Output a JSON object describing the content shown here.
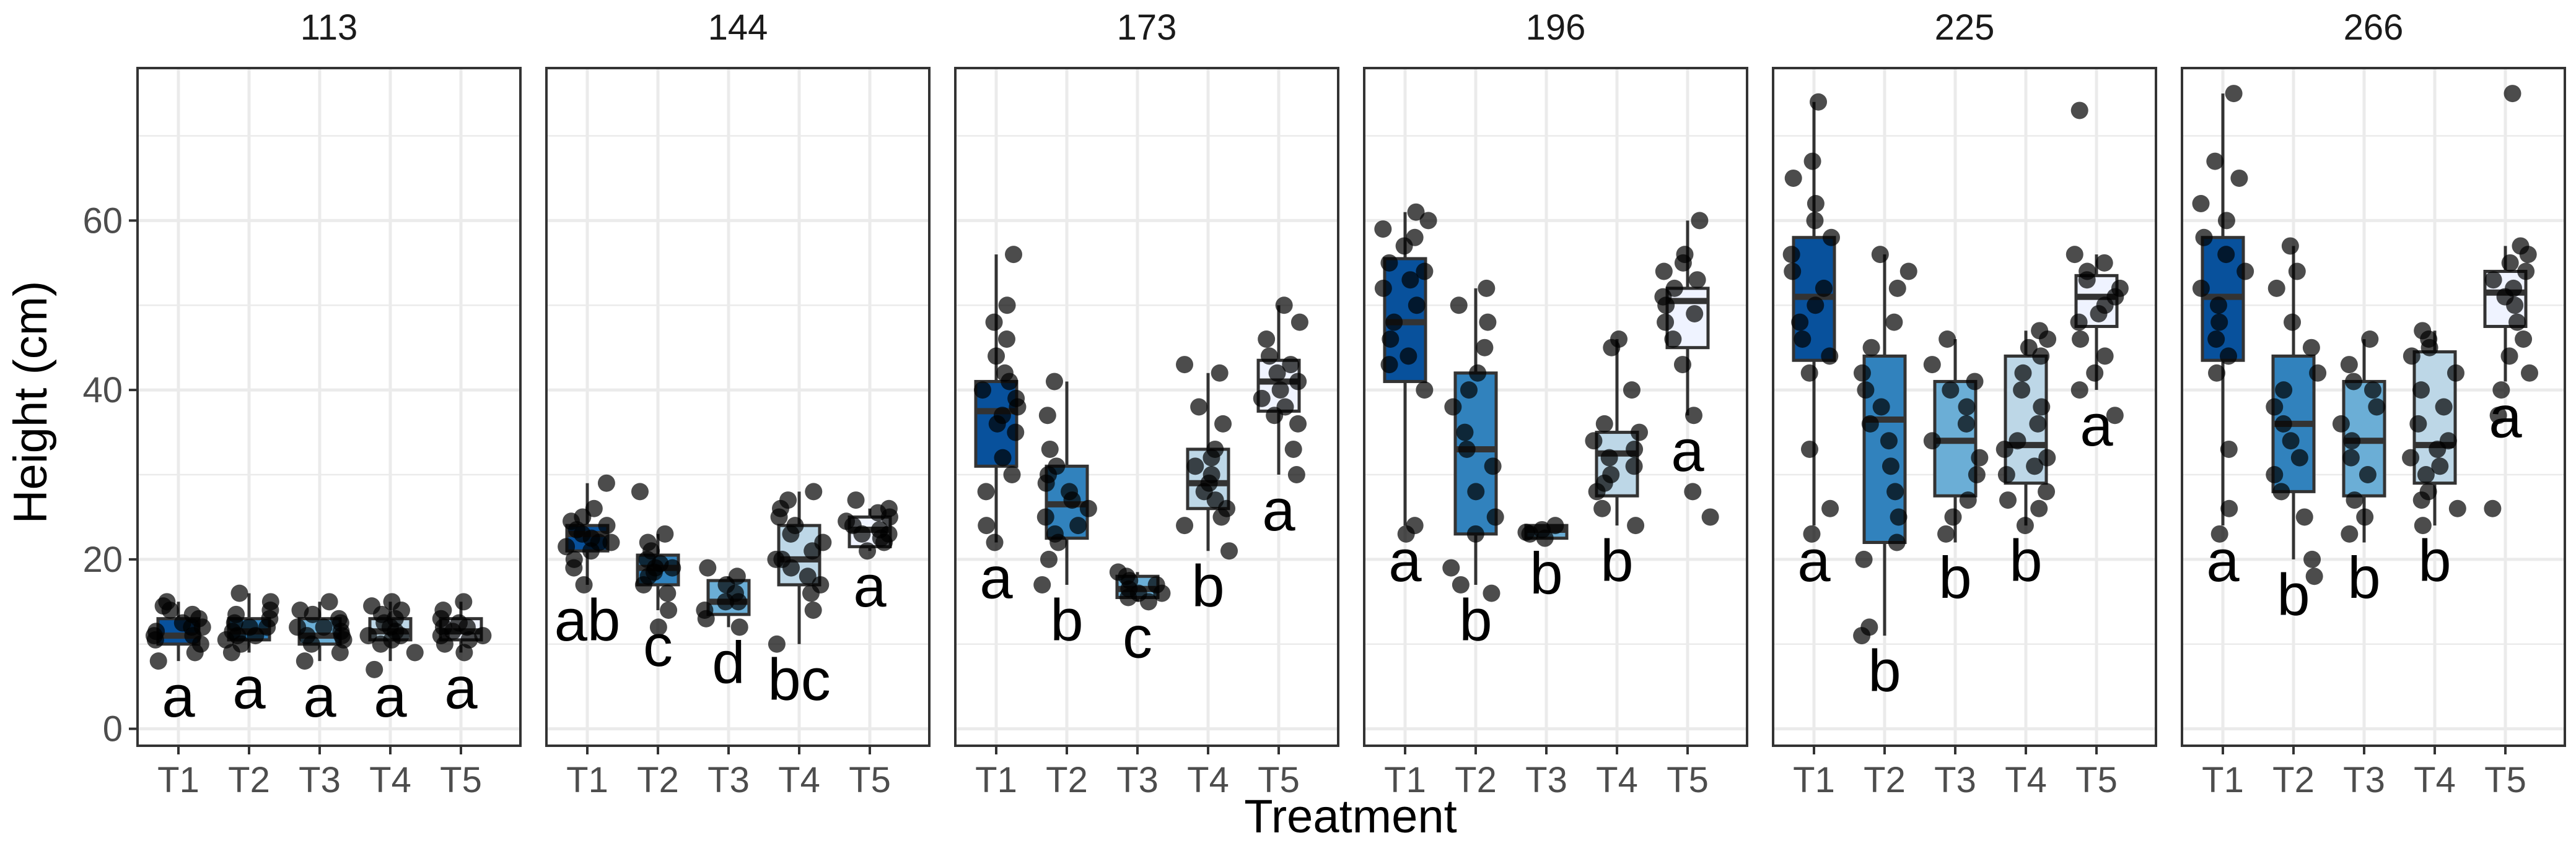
{
  "chart_data": {
    "type": "boxplot",
    "title": "",
    "xlabel": "Treatment",
    "ylabel": "Height (cm)",
    "ylim": [
      -2,
      78
    ],
    "yticks": [
      0,
      20,
      40,
      60
    ],
    "categories": [
      "T1",
      "T2",
      "T3",
      "T4",
      "T5"
    ],
    "fill_colors": [
      "#08519c",
      "#3182bd",
      "#6baed6",
      "#bdd7e7",
      "#eff3ff"
    ],
    "facets": [
      {
        "label": "113",
        "boxes": [
          {
            "min": 8,
            "q1": 10,
            "median": 11,
            "q3": 13,
            "max": 15,
            "letter": "a"
          },
          {
            "min": 9,
            "q1": 10.5,
            "median": 11.5,
            "q3": 13,
            "max": 16,
            "letter": "a"
          },
          {
            "min": 8,
            "q1": 10,
            "median": 11,
            "q3": 13,
            "max": 15,
            "letter": "a"
          },
          {
            "min": 8,
            "q1": 10.5,
            "median": 11.5,
            "q3": 13,
            "max": 15,
            "letter": "a"
          },
          {
            "min": 9,
            "q1": 10.5,
            "median": 11.5,
            "q3": 13,
            "max": 15,
            "letter": "a"
          }
        ]
      },
      {
        "label": "144",
        "boxes": [
          {
            "min": 17,
            "q1": 21,
            "median": 23,
            "q3": 24,
            "max": 29,
            "letter": "ab"
          },
          {
            "min": 14,
            "q1": 17,
            "median": 19,
            "q3": 20.5,
            "max": 23,
            "letter": "c"
          },
          {
            "min": 12,
            "q1": 13.5,
            "median": 15,
            "q3": 17.5,
            "max": 18,
            "letter": "d"
          },
          {
            "min": 10,
            "q1": 17,
            "median": 20,
            "q3": 24,
            "max": 28,
            "letter": "bc"
          },
          {
            "min": 21,
            "q1": 21.5,
            "median": 23.5,
            "q3": 25,
            "max": 26,
            "letter": "a"
          }
        ]
      },
      {
        "label": "173",
        "boxes": [
          {
            "min": 22,
            "q1": 31,
            "median": 37.5,
            "q3": 41,
            "max": 56,
            "letter": "a"
          },
          {
            "min": 17,
            "q1": 22.5,
            "median": 26.5,
            "q3": 31,
            "max": 41,
            "letter": "b"
          },
          {
            "min": 15,
            "q1": 15.5,
            "median": 16.5,
            "q3": 18,
            "max": 18.5,
            "letter": "c"
          },
          {
            "min": 21,
            "q1": 26,
            "median": 29,
            "q3": 33,
            "max": 42,
            "letter": "b"
          },
          {
            "min": 30,
            "q1": 37.5,
            "median": 41,
            "q3": 43.5,
            "max": 50,
            "letter": "a"
          }
        ]
      },
      {
        "label": "196",
        "boxes": [
          {
            "min": 24,
            "q1": 41,
            "median": 48,
            "q3": 55.5,
            "max": 61,
            "letter": "a"
          },
          {
            "min": 17,
            "q1": 23,
            "median": 33,
            "q3": 42,
            "max": 52,
            "letter": "b"
          },
          {
            "min": 22.5,
            "q1": 22.5,
            "median": 23.5,
            "q3": 24,
            "max": 24,
            "letter": "b"
          },
          {
            "min": 24,
            "q1": 27.5,
            "median": 32.5,
            "q3": 35,
            "max": 46,
            "letter": "b"
          },
          {
            "min": 37,
            "q1": 45,
            "median": 50.5,
            "q3": 52,
            "max": 60,
            "letter": "a"
          }
        ]
      },
      {
        "label": "225",
        "boxes": [
          {
            "min": 24,
            "q1": 43.5,
            "median": 51,
            "q3": 58,
            "max": 74,
            "letter": "a"
          },
          {
            "min": 11,
            "q1": 22,
            "median": 36.5,
            "q3": 44,
            "max": 56,
            "letter": "b"
          },
          {
            "min": 22,
            "q1": 27.5,
            "median": 34,
            "q3": 41,
            "max": 46,
            "letter": "b"
          },
          {
            "min": 24,
            "q1": 29,
            "median": 33.5,
            "q3": 44,
            "max": 47,
            "letter": "b"
          },
          {
            "min": 40,
            "q1": 47.5,
            "median": 51,
            "q3": 53.5,
            "max": 56,
            "letter": "a"
          }
        ]
      },
      {
        "label": "266",
        "boxes": [
          {
            "min": 24,
            "q1": 43.5,
            "median": 51,
            "q3": 58,
            "max": 75,
            "letter": "a"
          },
          {
            "min": 20,
            "q1": 28,
            "median": 36,
            "q3": 44,
            "max": 57,
            "letter": "b"
          },
          {
            "min": 22,
            "q1": 27.5,
            "median": 34,
            "q3": 41,
            "max": 46,
            "letter": "b"
          },
          {
            "min": 24,
            "q1": 29,
            "median": 33.5,
            "q3": 44.5,
            "max": 47,
            "letter": "b"
          },
          {
            "min": 41,
            "q1": 47.5,
            "median": 51.5,
            "q3": 54,
            "max": 57,
            "letter": "a"
          }
        ]
      }
    ],
    "points": [
      [
        [
          8,
          9,
          10,
          10.5,
          11,
          11.5,
          12,
          12.5,
          13,
          13.5,
          14,
          14.5,
          15,
          11,
          12
        ],
        [
          9,
          10,
          10.5,
          11,
          11.5,
          12,
          12.5,
          13,
          13.5,
          14,
          15,
          16,
          11,
          12
        ],
        [
          8,
          9,
          10,
          10.5,
          11,
          11.5,
          12,
          12.5,
          13,
          13.5,
          14,
          15,
          12,
          11
        ],
        [
          7,
          9,
          10,
          10.5,
          11,
          11.5,
          12,
          12.5,
          13,
          13.5,
          14,
          14.5,
          15,
          11
        ],
        [
          9,
          10,
          10.5,
          11,
          11.5,
          12,
          12.5,
          13,
          14,
          15,
          11,
          12
        ]
      ],
      [
        [
          17,
          19,
          20,
          21,
          21.5,
          22,
          22.5,
          23,
          23.5,
          24,
          24.5,
          25,
          26,
          29,
          22
        ],
        [
          12,
          14,
          16,
          17,
          18,
          18.5,
          19,
          19.5,
          20,
          21,
          22,
          23,
          28,
          19
        ],
        [
          12,
          13,
          14,
          15,
          16,
          17,
          18,
          19,
          15
        ],
        [
          10,
          14,
          16,
          17,
          18,
          19,
          20,
          21,
          22,
          23,
          24,
          25,
          26,
          27,
          28,
          20
        ],
        [
          21,
          22,
          22.5,
          23,
          23.5,
          24,
          24.5,
          25,
          25.5,
          26,
          27,
          23
        ]
      ],
      [
        [
          22,
          24,
          28,
          30,
          32,
          35,
          36,
          37,
          38,
          39,
          40,
          41,
          42,
          44,
          46,
          48,
          50,
          56
        ],
        [
          17,
          20,
          22,
          23,
          24,
          25,
          26,
          27,
          28,
          29,
          30,
          31,
          33,
          37,
          41
        ],
        [
          15,
          15.5,
          16,
          16.5,
          17,
          17.5,
          18,
          18.5,
          16
        ],
        [
          21,
          24,
          25,
          26,
          27,
          28,
          29,
          30,
          31,
          32,
          33,
          36,
          38,
          42,
          43
        ],
        [
          30,
          33,
          36,
          37,
          38,
          39,
          40,
          41,
          42,
          43,
          44,
          46,
          48,
          50
        ]
      ],
      [
        [
          23,
          24,
          40,
          43,
          44,
          46,
          48,
          50,
          52,
          53,
          54,
          55,
          57,
          58,
          59,
          60,
          61
        ],
        [
          16,
          17,
          19,
          23,
          25,
          28,
          31,
          33,
          35,
          38,
          40,
          42,
          45,
          48,
          50,
          52
        ],
        [
          22.5,
          23,
          23.5,
          24,
          23.2
        ],
        [
          24,
          26,
          28,
          29,
          30,
          31,
          32,
          33,
          34,
          35,
          36,
          40,
          45,
          46
        ],
        [
          25,
          28,
          37,
          43,
          46,
          48,
          49,
          50,
          51,
          52,
          53,
          54,
          55,
          56,
          60
        ]
      ],
      [
        [
          23,
          26,
          33,
          42,
          44,
          46,
          48,
          50,
          52,
          54,
          56,
          58,
          60,
          62,
          65,
          67,
          74
        ],
        [
          11,
          12,
          20,
          22,
          25,
          28,
          31,
          34,
          36,
          38,
          40,
          42,
          45,
          48,
          52,
          54,
          56
        ],
        [
          23,
          25,
          27,
          30,
          32,
          34,
          36,
          38,
          40,
          41,
          43,
          46
        ],
        [
          24,
          26,
          27,
          28,
          30,
          31,
          32,
          33,
          34,
          36,
          38,
          40,
          42,
          44,
          45,
          46,
          47
        ],
        [
          37,
          40,
          42,
          44,
          46,
          48,
          49,
          50,
          51,
          52,
          53,
          54,
          55,
          56,
          73
        ]
      ],
      [
        [
          23,
          26,
          33,
          42,
          44,
          46,
          48,
          50,
          52,
          54,
          56,
          58,
          60,
          62,
          65,
          67,
          75
        ],
        [
          18,
          20,
          25,
          28,
          30,
          32,
          34,
          36,
          38,
          40,
          42,
          45,
          48,
          52,
          54,
          57
        ],
        [
          23,
          25,
          27,
          30,
          32,
          34,
          36,
          38,
          40,
          41,
          43,
          46
        ],
        [
          24,
          26,
          27,
          28,
          30,
          31,
          32,
          33,
          34,
          36,
          38,
          40,
          42,
          44,
          45,
          46,
          47
        ],
        [
          26,
          37,
          40,
          42,
          44,
          46,
          48,
          50,
          51,
          52,
          53,
          54,
          55,
          56,
          57,
          75
        ]
      ]
    ]
  }
}
